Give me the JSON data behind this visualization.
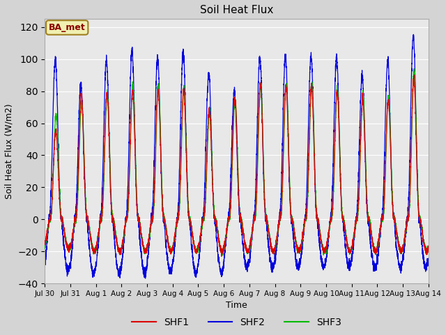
{
  "title": "Soil Heat Flux",
  "ylabel": "Soil Heat Flux (W/m2)",
  "xlabel": "Time",
  "ylim": [
    -40,
    125
  ],
  "yticks": [
    -40,
    -20,
    0,
    20,
    40,
    60,
    80,
    100,
    120
  ],
  "fig_facecolor": "#d4d4d4",
  "plot_bg_color": "#e8e8e8",
  "series_colors": [
    "#dd0000",
    "#0000dd",
    "#00bb00"
  ],
  "series_names": [
    "SHF1",
    "SHF2",
    "SHF3"
  ],
  "station_label": "BA_met",
  "n_days": 15,
  "points_per_day": 288,
  "xtick_labels": [
    "Jul 30",
    "Jul 31",
    "Aug 1",
    "Aug 2",
    "Aug 3",
    "Aug 4",
    "Aug 5",
    "Aug 6",
    "Aug 7",
    "Aug 8",
    "Aug 9",
    "Aug 10",
    "Aug 11",
    "Aug 12",
    "Aug 13",
    "Aug 14"
  ],
  "blue_peaks": [
    100,
    84,
    99,
    105,
    101,
    104,
    91,
    80,
    101,
    102,
    102,
    101,
    90,
    99,
    114
  ],
  "red_peaks": [
    55,
    78,
    79,
    80,
    80,
    80,
    68,
    76,
    85,
    83,
    83,
    80,
    75,
    74,
    88
  ],
  "green_peaks": [
    65,
    72,
    79,
    84,
    84,
    82,
    67,
    75,
    84,
    84,
    84,
    82,
    78,
    77,
    93
  ],
  "blue_troughs": [
    32,
    34,
    34,
    34,
    32,
    33,
    33,
    30,
    30,
    30,
    30,
    30,
    30,
    30,
    30
  ],
  "red_troughs": [
    18,
    20,
    20,
    20,
    20,
    20,
    20,
    20,
    20,
    20,
    20,
    20,
    20,
    20,
    20
  ],
  "green_troughs": [
    18,
    20,
    20,
    20,
    20,
    20,
    20,
    20,
    20,
    20,
    20,
    20,
    20,
    20,
    20
  ]
}
